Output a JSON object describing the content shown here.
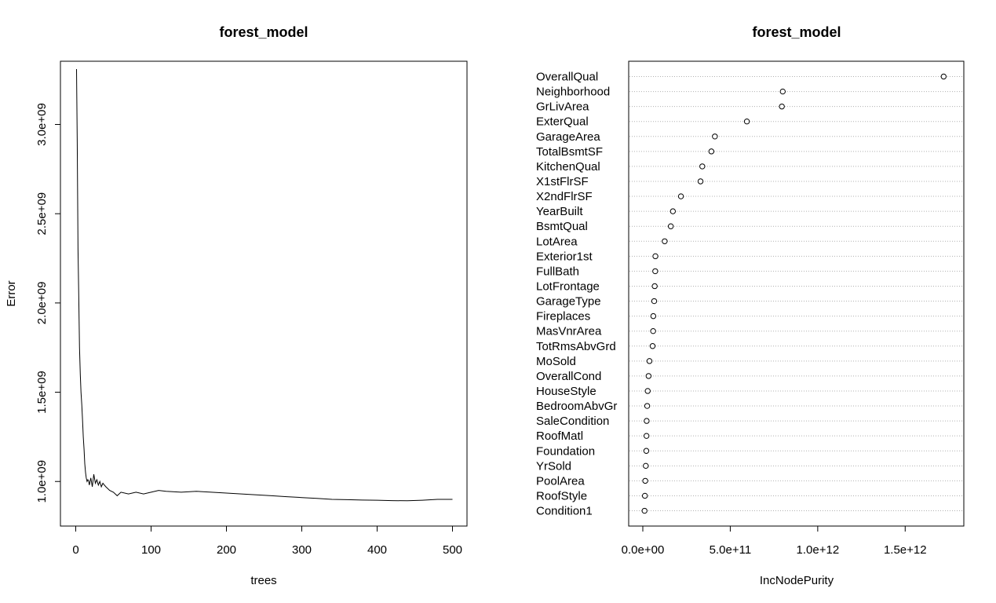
{
  "chart_data": [
    {
      "type": "line",
      "title": "forest_model",
      "xlabel": "trees",
      "ylabel": "Error",
      "xlim": [
        0,
        500
      ],
      "ylim": [
        800000000,
        3300000000
      ],
      "xticks": [
        0,
        100,
        200,
        300,
        400,
        500
      ],
      "xtick_labels": [
        "0",
        "100",
        "200",
        "300",
        "400",
        "500"
      ],
      "yticks": [
        1000000000,
        1500000000,
        2000000000,
        2500000000,
        3000000000
      ],
      "ytick_labels": [
        "1.0e+09",
        "1.5e+09",
        "2.0e+09",
        "2.5e+09",
        "3.0e+09"
      ],
      "grid": false,
      "series": [
        {
          "x": [
            1,
            2,
            3,
            4,
            5,
            6,
            7,
            8,
            9,
            10,
            11,
            12,
            13,
            14,
            15,
            16,
            17,
            18,
            20,
            22,
            24,
            26,
            28,
            30,
            32,
            34,
            36,
            38,
            40,
            45,
            50,
            55,
            60,
            70,
            80,
            90,
            100,
            110,
            120,
            140,
            160,
            180,
            200,
            220,
            240,
            260,
            280,
            300,
            320,
            340,
            360,
            380,
            400,
            420,
            440,
            460,
            480,
            500
          ],
          "y": [
            3310000000,
            2900000000,
            2300000000,
            2050000000,
            1750000000,
            1600000000,
            1500000000,
            1430000000,
            1350000000,
            1250000000,
            1180000000,
            1100000000,
            1050000000,
            1020000000,
            1000000000,
            1010000000,
            1005000000,
            980000000,
            1020000000,
            970000000,
            1040000000,
            990000000,
            1010000000,
            980000000,
            1000000000,
            970000000,
            990000000,
            980000000,
            970000000,
            950000000,
            940000000,
            920000000,
            940000000,
            930000000,
            940000000,
            930000000,
            940000000,
            950000000,
            945000000,
            940000000,
            945000000,
            940000000,
            935000000,
            930000000,
            925000000,
            920000000,
            915000000,
            910000000,
            905000000,
            900000000,
            898000000,
            896000000,
            895000000,
            893000000,
            892000000,
            895000000,
            900000000,
            900000000
          ]
        }
      ]
    },
    {
      "type": "scatter",
      "title": "forest_model",
      "xlabel": "IncNodePurity",
      "ylabel": "",
      "xlim": [
        0,
        1750000000000
      ],
      "xticks": [
        0,
        500000000000,
        1000000000000,
        1500000000000
      ],
      "xtick_labels": [
        "0.0e+00",
        "5.0e+11",
        "1.0e+12",
        "1.5e+12"
      ],
      "grid": "dotted horizontal",
      "categories": [
        "OverallQual",
        "Neighborhood",
        "GrLivArea",
        "ExterQual",
        "GarageArea",
        "TotalBsmtSF",
        "KitchenQual",
        "X1stFlrSF",
        "X2ndFlrSF",
        "YearBuilt",
        "BsmtQual",
        "LotArea",
        "Exterior1st",
        "FullBath",
        "LotFrontage",
        "GarageType",
        "Fireplaces",
        "MasVnrArea",
        "TotRmsAbvGrd",
        "MoSold",
        "OverallCond",
        "HouseStyle",
        "BedroomAbvGr",
        "SaleCondition",
        "RoofMatl",
        "Foundation",
        "YrSold",
        "PoolArea",
        "RoofStyle",
        "Condition1"
      ],
      "values": [
        1720000000000,
        800000000000,
        795000000000,
        595000000000,
        412000000000,
        392000000000,
        340000000000,
        330000000000,
        218000000000,
        172000000000,
        160000000000,
        125000000000,
        72000000000,
        71000000000,
        68000000000,
        65000000000,
        60000000000,
        59000000000,
        56000000000,
        38000000000,
        33000000000,
        28000000000,
        25000000000,
        22000000000,
        21000000000,
        20000000000,
        17000000000,
        14000000000,
        12000000000,
        10000000000
      ]
    }
  ]
}
